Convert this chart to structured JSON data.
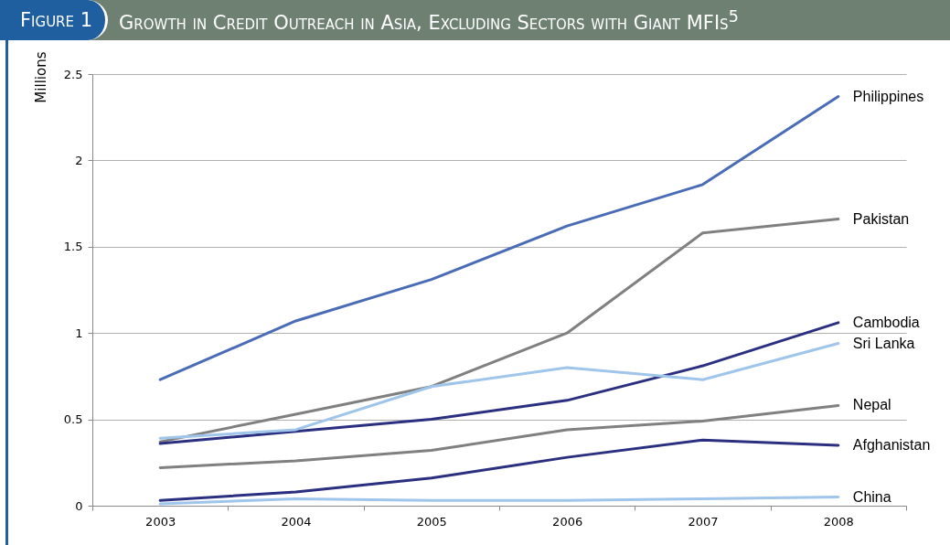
{
  "chart_data": {
    "type": "line",
    "title": "Growth in Credit Outreach in Asia, Excluding Sectors with Giant MFIs$^{5}$",
    "ylabel": "Millions",
    "annotations": [
      "Figure 1"
    ],
    "categories": [
      "2003",
      "2004",
      "2005",
      "2006",
      "2007",
      "2008"
    ],
    "series": [
      {
        "name": "Philippines",
        "color": "#4a6bb5",
        "values": [
          0.73,
          1.07,
          1.31,
          1.62,
          1.86,
          2.37
        ]
      },
      {
        "name": "Pakistan",
        "color": "#808080",
        "values": [
          0.37,
          0.53,
          0.69,
          1.0,
          1.58,
          1.66
        ]
      },
      {
        "name": "Cambodia",
        "color": "#2b2f80",
        "values": [
          0.36,
          0.43,
          0.5,
          0.61,
          0.81,
          1.06
        ]
      },
      {
        "name": "Sri Lanka",
        "color": "#9fc6ea",
        "values": [
          0.39,
          0.44,
          0.69,
          0.8,
          0.73,
          0.94
        ]
      },
      {
        "name": "Nepal",
        "color": "#808080",
        "values": [
          0.22,
          0.26,
          0.32,
          0.44,
          0.49,
          0.58
        ]
      },
      {
        "name": "Afghanistan",
        "color": "#2b2f80",
        "values": [
          0.03,
          0.08,
          0.16,
          0.28,
          0.38,
          0.35
        ]
      },
      {
        "name": "China",
        "color": "#9fc6ea",
        "values": [
          0.01,
          0.04,
          0.03,
          0.03,
          0.04,
          0.05
        ]
      }
    ],
    "ylim": [
      0,
      2.5
    ],
    "yticks": [
      0,
      0.5,
      1,
      1.5,
      2,
      2.5
    ],
    "grid": "y",
    "legend": false
  }
}
